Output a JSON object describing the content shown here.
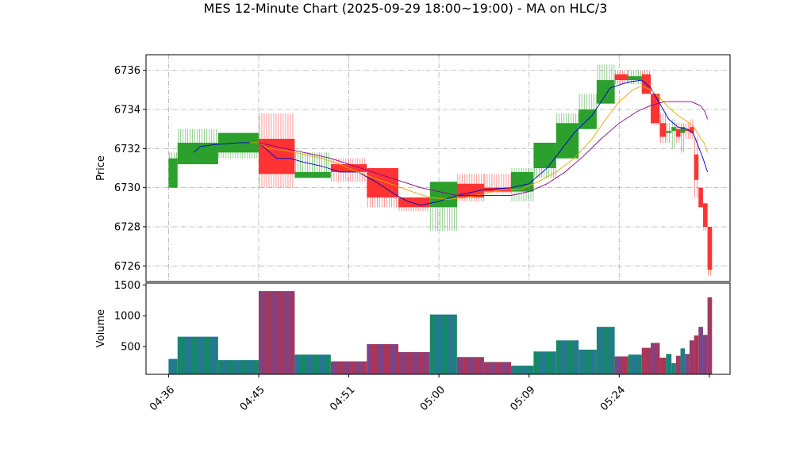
{
  "chart_data": {
    "type": "candlestick",
    "title": "MES 12-Minute Chart (2025-09-29 18:00~19:00) - MA on HLC/3",
    "xlabel": "",
    "price_panel": {
      "ylabel": "Price",
      "ylim": [
        6725.2,
        6736.8
      ],
      "yticks": [
        6726,
        6728,
        6730,
        6732,
        6734,
        6736
      ],
      "grid": true
    },
    "volume_panel": {
      "ylabel": "Volume",
      "ylim": [
        50,
        1530
      ],
      "yticks": [
        500,
        1000,
        1500
      ],
      "grid": false
    },
    "x_tick_labels": [
      "04:36",
      "04:45",
      "04:51",
      "05:00",
      "05:09",
      "05:24"
    ],
    "x_tick_positions": [
      0,
      10,
      20,
      30,
      40,
      50
    ],
    "x_last": 60,
    "candles": [
      {
        "x0": 0,
        "x1": 1,
        "open": 6730.0,
        "high": 6731.8,
        "low": 6730.0,
        "close": 6731.5,
        "volume": 300
      },
      {
        "x0": 1,
        "x1": 5.5,
        "open": 6731.2,
        "high": 6733.0,
        "low": 6731.2,
        "close": 6732.3,
        "volume": 660
      },
      {
        "x0": 5.5,
        "x1": 10,
        "open": 6731.8,
        "high": 6732.8,
        "low": 6731.5,
        "close": 6732.8,
        "volume": 280
      },
      {
        "x0": 10,
        "x1": 14,
        "open": 6732.5,
        "high": 6733.8,
        "low": 6730.0,
        "close": 6730.7,
        "volume": 1400
      },
      {
        "x0": 14,
        "x1": 18,
        "open": 6730.5,
        "high": 6731.8,
        "low": 6730.5,
        "close": 6730.8,
        "volume": 370
      },
      {
        "x0": 18,
        "x1": 22,
        "open": 6731.2,
        "high": 6731.5,
        "low": 6730.3,
        "close": 6730.8,
        "volume": 260
      },
      {
        "x0": 22,
        "x1": 25.5,
        "open": 6731.0,
        "high": 6731.0,
        "low": 6729.0,
        "close": 6729.5,
        "volume": 540
      },
      {
        "x0": 25.5,
        "x1": 29,
        "open": 6729.5,
        "high": 6729.5,
        "low": 6728.8,
        "close": 6729.0,
        "volume": 410
      },
      {
        "x0": 29,
        "x1": 32,
        "open": 6729.0,
        "high": 6730.3,
        "low": 6727.8,
        "close": 6730.3,
        "volume": 1020
      },
      {
        "x0": 32,
        "x1": 35,
        "open": 6730.2,
        "high": 6730.7,
        "low": 6729.3,
        "close": 6729.5,
        "volume": 330
      },
      {
        "x0": 35,
        "x1": 38,
        "open": 6730.0,
        "high": 6730.7,
        "low": 6729.7,
        "close": 6729.8,
        "volume": 250
      },
      {
        "x0": 38,
        "x1": 40.5,
        "open": 6729.8,
        "high": 6731.0,
        "low": 6729.3,
        "close": 6730.8,
        "volume": 190
      },
      {
        "x0": 40.5,
        "x1": 43,
        "open": 6731.0,
        "high": 6732.3,
        "low": 6730.5,
        "close": 6732.3,
        "volume": 420
      },
      {
        "x0": 43,
        "x1": 45.5,
        "open": 6731.5,
        "high": 6733.8,
        "low": 6731.5,
        "close": 6733.3,
        "volume": 600
      },
      {
        "x0": 45.5,
        "x1": 47.5,
        "open": 6733.0,
        "high": 6734.8,
        "low": 6733.0,
        "close": 6734.0,
        "volume": 450
      },
      {
        "x0": 47.5,
        "x1": 49.5,
        "open": 6734.3,
        "high": 6736.3,
        "low": 6734.3,
        "close": 6735.5,
        "volume": 820
      },
      {
        "x0": 49.5,
        "x1": 51,
        "open": 6735.8,
        "high": 6736.0,
        "low": 6735.3,
        "close": 6735.5,
        "volume": 340
      },
      {
        "x0": 51,
        "x1": 52.5,
        "open": 6735.5,
        "high": 6736.0,
        "low": 6735.3,
        "close": 6735.7,
        "volume": 370
      },
      {
        "x0": 52.5,
        "x1": 53.5,
        "open": 6735.8,
        "high": 6736.0,
        "low": 6734.8,
        "close": 6734.8,
        "volume": 480
      },
      {
        "x0": 53.5,
        "x1": 54.5,
        "open": 6734.8,
        "high": 6734.8,
        "low": 6733.2,
        "close": 6733.3,
        "volume": 560
      },
      {
        "x0": 54.5,
        "x1": 55.2,
        "open": 6733.3,
        "high": 6733.8,
        "low": 6732.3,
        "close": 6732.6,
        "volume": 320
      },
      {
        "x0": 55.2,
        "x1": 55.8,
        "open": 6732.8,
        "high": 6733.3,
        "low": 6732.3,
        "close": 6732.9,
        "volume": 380
      },
      {
        "x0": 55.8,
        "x1": 56.3,
        "open": 6732.9,
        "high": 6733.5,
        "low": 6732.0,
        "close": 6733.1,
        "volume": 230
      },
      {
        "x0": 56.3,
        "x1": 56.8,
        "open": 6733.0,
        "high": 6733.3,
        "low": 6732.3,
        "close": 6732.6,
        "volume": 350
      },
      {
        "x0": 56.8,
        "x1": 57.3,
        "open": 6732.8,
        "high": 6733.3,
        "low": 6731.8,
        "close": 6733.1,
        "volume": 470
      },
      {
        "x0": 57.3,
        "x1": 57.8,
        "open": 6733.0,
        "high": 6733.3,
        "low": 6732.5,
        "close": 6732.9,
        "volume": 380
      },
      {
        "x0": 57.8,
        "x1": 58.3,
        "open": 6733.1,
        "high": 6733.5,
        "low": 6732.5,
        "close": 6732.8,
        "volume": 600
      },
      {
        "x0": 58.3,
        "x1": 58.8,
        "open": 6731.7,
        "high": 6732.6,
        "low": 6729.5,
        "close": 6730.4,
        "volume": 680
      },
      {
        "x0": 58.8,
        "x1": 59.3,
        "open": 6730.0,
        "high": 6730.0,
        "low": 6729.0,
        "close": 6729.0,
        "volume": 820
      },
      {
        "x0": 59.3,
        "x1": 59.8,
        "open": 6729.2,
        "high": 6729.2,
        "low": 6727.8,
        "close": 6728.0,
        "volume": 690
      },
      {
        "x0": 59.8,
        "x1": 60.3,
        "open": 6728.0,
        "high": 6728.0,
        "low": 6725.5,
        "close": 6725.8,
        "volume": 1300
      }
    ],
    "moving_averages": [
      {
        "color": "#0000cc",
        "points": [
          [
            2.8,
            6731.8
          ],
          [
            3.5,
            6732.1
          ],
          [
            5,
            6732.2
          ],
          [
            8,
            6732.3
          ],
          [
            10,
            6732.3
          ],
          [
            12,
            6731.5
          ],
          [
            13.5,
            6731.5
          ],
          [
            15,
            6731.3
          ],
          [
            17,
            6731.1
          ],
          [
            19,
            6730.8
          ],
          [
            21,
            6730.8
          ],
          [
            23,
            6730.3
          ],
          [
            25,
            6729.7
          ],
          [
            26.5,
            6729.3
          ],
          [
            28,
            6729.1
          ],
          [
            30,
            6729.3
          ],
          [
            32,
            6729.6
          ],
          [
            35,
            6729.9
          ],
          [
            38,
            6730.0
          ],
          [
            40,
            6730.2
          ],
          [
            42,
            6731.0
          ],
          [
            43.5,
            6731.9
          ],
          [
            45,
            6732.8
          ],
          [
            47,
            6733.7
          ],
          [
            49,
            6735.1
          ],
          [
            51,
            6735.4
          ],
          [
            52.5,
            6735.5
          ],
          [
            53.5,
            6735.1
          ],
          [
            54.5,
            6734.3
          ],
          [
            55.5,
            6733.5
          ],
          [
            56.5,
            6733.1
          ],
          [
            57.5,
            6733.0
          ],
          [
            58.2,
            6732.8
          ],
          [
            58.8,
            6732.1
          ],
          [
            59.3,
            6731.5
          ],
          [
            59.8,
            6730.8
          ]
        ]
      },
      {
        "color": "#e6a800",
        "points": [
          [
            9,
            6732.3
          ],
          [
            10,
            6732.3
          ],
          [
            11,
            6732.0
          ],
          [
            13,
            6731.9
          ],
          [
            15,
            6731.7
          ],
          [
            17,
            6731.5
          ],
          [
            19,
            6731.2
          ],
          [
            21,
            6730.8
          ],
          [
            24,
            6730.3
          ],
          [
            27,
            6729.8
          ],
          [
            29,
            6729.5
          ],
          [
            31,
            6729.4
          ],
          [
            33,
            6729.5
          ],
          [
            35,
            6729.7
          ],
          [
            37,
            6729.9
          ],
          [
            39,
            6729.9
          ],
          [
            41,
            6730.3
          ],
          [
            43,
            6730.8
          ],
          [
            45,
            6731.5
          ],
          [
            47,
            6732.5
          ],
          [
            48.5,
            6733.5
          ],
          [
            50,
            6734.4
          ],
          [
            51.5,
            6735.0
          ],
          [
            52.5,
            6735.2
          ],
          [
            53.5,
            6735.0
          ],
          [
            54.5,
            6734.6
          ],
          [
            55.5,
            6734.1
          ],
          [
            56.5,
            6733.7
          ],
          [
            57.5,
            6733.4
          ],
          [
            58.3,
            6733.1
          ],
          [
            58.8,
            6732.7
          ],
          [
            59.4,
            6732.3
          ],
          [
            59.8,
            6731.8
          ]
        ]
      },
      {
        "color": "#8b008b",
        "points": [
          [
            10,
            6732.3
          ],
          [
            12,
            6732.1
          ],
          [
            14,
            6731.9
          ],
          [
            16,
            6731.7
          ],
          [
            18,
            6731.5
          ],
          [
            20,
            6731.2
          ],
          [
            22,
            6730.9
          ],
          [
            24,
            6730.6
          ],
          [
            26,
            6730.3
          ],
          [
            28,
            6730.0
          ],
          [
            30,
            6729.8
          ],
          [
            32,
            6729.6
          ],
          [
            34,
            6729.6
          ],
          [
            36,
            6729.6
          ],
          [
            38,
            6729.6
          ],
          [
            40,
            6729.8
          ],
          [
            42,
            6730.2
          ],
          [
            44,
            6730.8
          ],
          [
            46,
            6731.6
          ],
          [
            48,
            6732.5
          ],
          [
            50,
            6733.3
          ],
          [
            52,
            6733.9
          ],
          [
            53.5,
            6734.2
          ],
          [
            55,
            6734.4
          ],
          [
            56.5,
            6734.4
          ],
          [
            58,
            6734.4
          ],
          [
            59,
            6734.2
          ],
          [
            59.5,
            6733.9
          ],
          [
            59.8,
            6733.5
          ]
        ]
      }
    ],
    "colors": {
      "up": "#2ca02c",
      "down": "#ff3333",
      "vol_up": "#17876b",
      "vol_down": "#a8355a",
      "vol_edge": "#3a5fcd",
      "grid": "#b0b0b0"
    }
  }
}
